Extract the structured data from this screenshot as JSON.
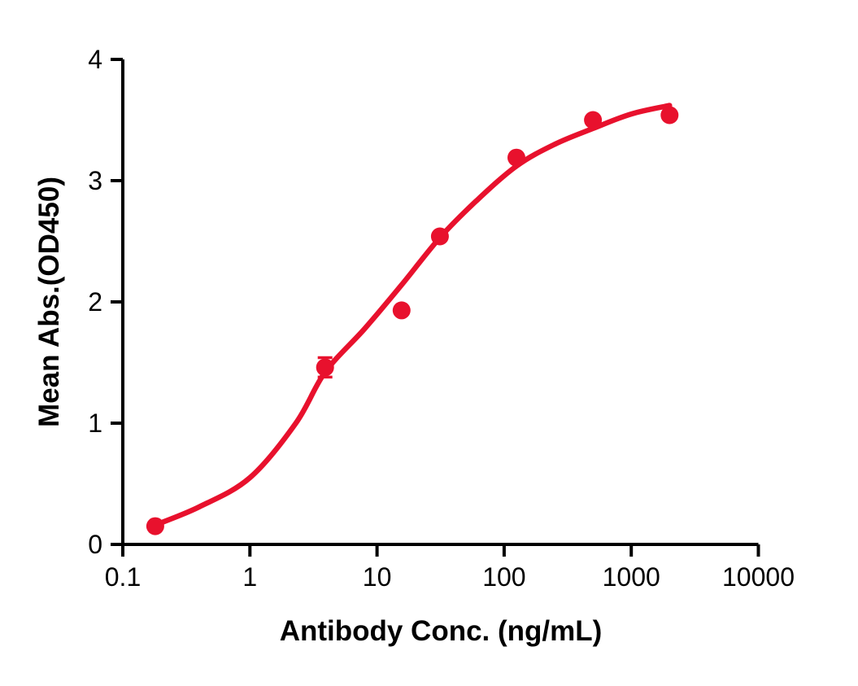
{
  "chart_data": {
    "type": "scatter",
    "subtype": "dose-response-curve",
    "title": "",
    "xlabel": "Antibody Conc. (ng/mL)",
    "ylabel": "Mean Abs.(OD450)",
    "x_scale": "log10",
    "xlim": [
      0.1,
      10000
    ],
    "ylim": [
      0,
      4
    ],
    "x_ticks": [
      0.1,
      1,
      10,
      100,
      1000,
      10000
    ],
    "x_tick_labels": [
      "0.1",
      "1",
      "10",
      "100",
      "1000",
      "10000"
    ],
    "y_ticks": [
      0,
      1,
      2,
      3,
      4
    ],
    "y_tick_labels": [
      "0",
      "1",
      "2",
      "3",
      "4"
    ],
    "grid": false,
    "legend": "none",
    "series": [
      {
        "name": "Mean Abs.(OD450)",
        "marker": "circle",
        "color": "#E8112D",
        "points": [
          {
            "x": 0.18,
            "y": 0.15
          },
          {
            "x": 3.9,
            "y": 1.46,
            "error": 0.08
          },
          {
            "x": 15.6,
            "y": 1.93
          },
          {
            "x": 31.25,
            "y": 2.54
          },
          {
            "x": 125,
            "y": 3.19
          },
          {
            "x": 500,
            "y": 3.5
          },
          {
            "x": 2000,
            "y": 3.54
          }
        ],
        "fit_curve": [
          [
            0.18,
            0.16
          ],
          [
            0.4,
            0.31
          ],
          [
            1,
            0.55
          ],
          [
            2.3,
            1.0
          ],
          [
            3.9,
            1.42
          ],
          [
            8,
            1.78
          ],
          [
            15.6,
            2.14
          ],
          [
            31.25,
            2.53
          ],
          [
            60,
            2.83
          ],
          [
            125,
            3.12
          ],
          [
            250,
            3.3
          ],
          [
            500,
            3.43
          ],
          [
            1000,
            3.55
          ],
          [
            2000,
            3.62
          ]
        ]
      }
    ]
  },
  "colors": {
    "accent": "#E8112D",
    "axis": "#000000",
    "background": "#FFFFFF"
  }
}
